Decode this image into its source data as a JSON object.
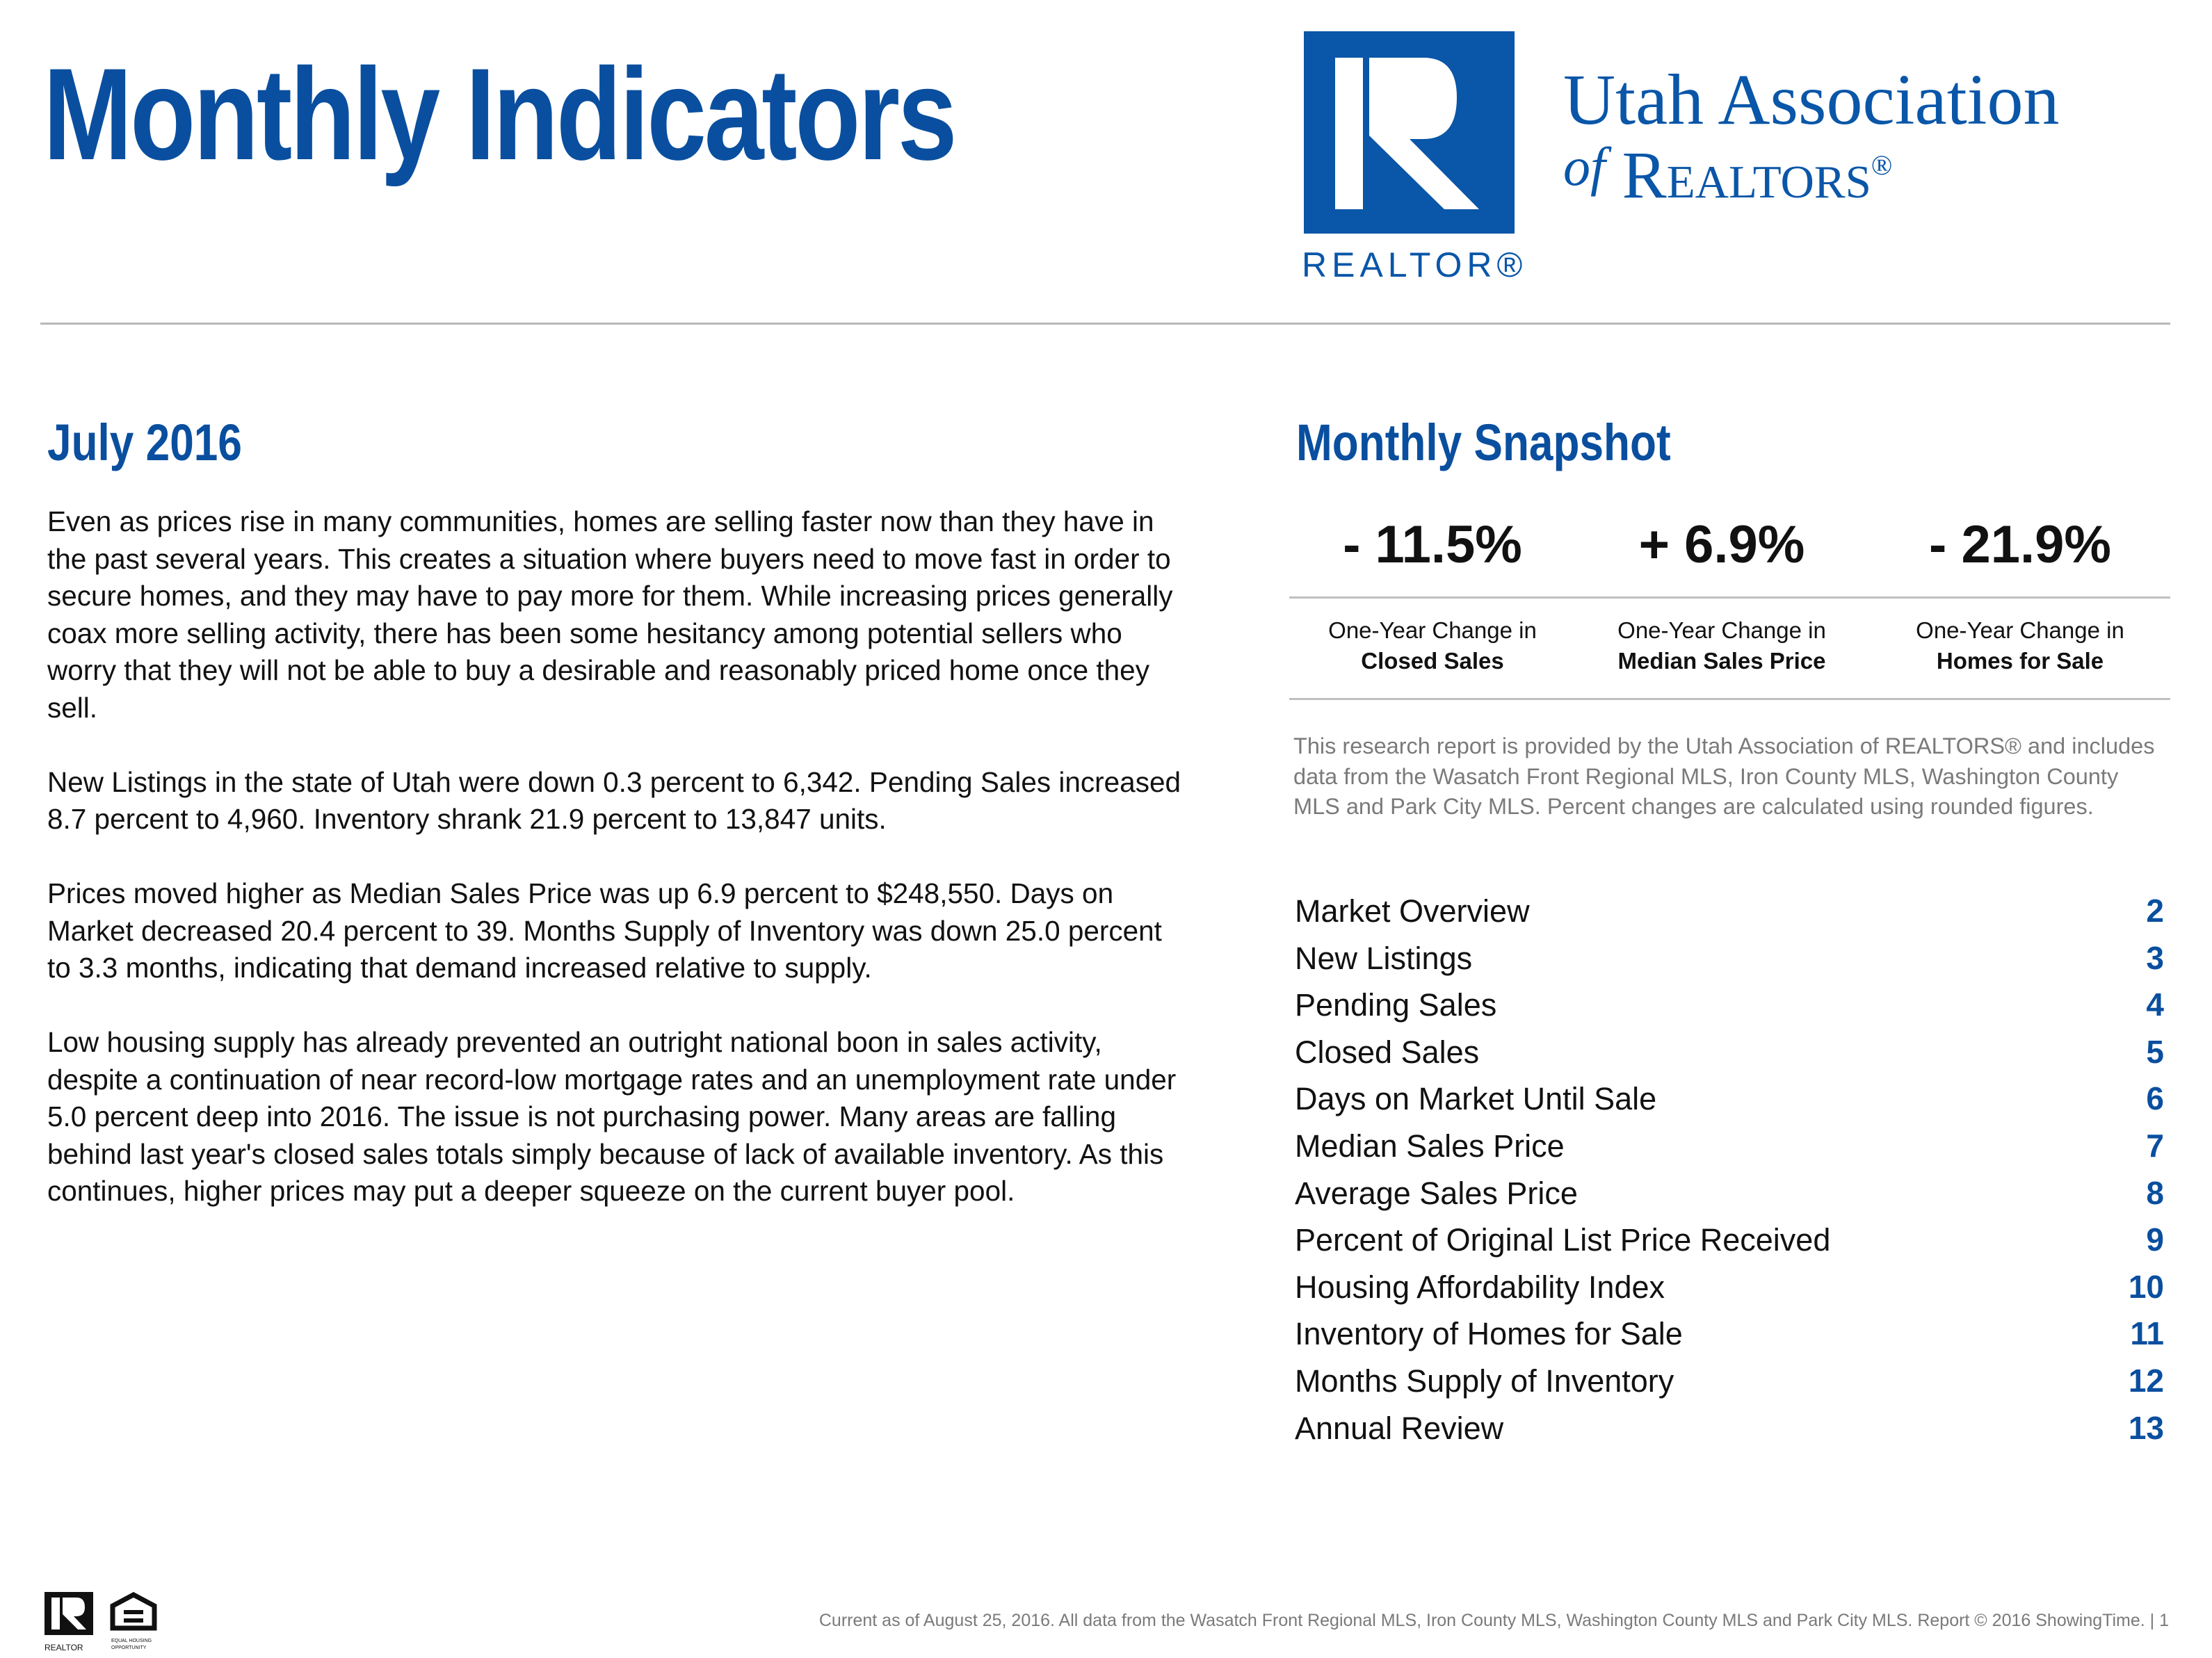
{
  "header": {
    "title": "Monthly Indicators",
    "logo": {
      "wordmark": "REALTOR®",
      "org_line1": "Utah Association",
      "org_of": "of",
      "org_line2": "Realtors",
      "org_reg": "®"
    }
  },
  "left": {
    "heading": "July 2016",
    "paragraphs": [
      "Even as prices rise in many communities, homes are selling faster now than they have in the past several years. This creates a situation where buyers need to move fast in order to secure homes, and they may have to pay more for them. While increasing prices generally coax more selling activity, there has been some hesitancy among potential sellers who worry that they will not be able to buy a desirable and reasonably priced home once they sell.",
      "New Listings in the state of Utah were down 0.3 percent to 6,342. Pending Sales increased 8.7 percent to 4,960. Inventory shrank 21.9 percent to 13,847 units.",
      "Prices moved higher as Median Sales Price was up 6.9 percent to $248,550. Days on Market decreased 20.4 percent to 39. Months Supply of Inventory was down 25.0 percent to 3.3 months, indicating that demand increased relative to supply.",
      "Low housing supply has already prevented an outright national boon in sales activity, despite a continuation of near record-low mortgage rates and an unemployment rate under 5.0 percent deep into 2016. The issue is not purchasing power. Many areas are falling behind last year's closed sales totals simply because of lack of available inventory. As this continues, higher prices may put a deeper squeeze on the current buyer pool."
    ]
  },
  "snapshot": {
    "heading": "Monthly Snapshot",
    "stats": [
      {
        "value": "- 11.5%",
        "label": "One-Year Change in",
        "metric": "Closed Sales"
      },
      {
        "value": "+ 6.9%",
        "label": "One-Year Change in",
        "metric": "Median Sales Price"
      },
      {
        "value": "- 21.9%",
        "label": "One-Year Change in",
        "metric": "Homes for Sale"
      }
    ],
    "note": "This research report is provided by the Utah Association of REALTORS® and includes data from the Wasatch Front Regional MLS, Iron County MLS, Washington County MLS and Park City MLS. Percent changes are calculated using rounded figures."
  },
  "toc": [
    {
      "label": "Market Overview",
      "page": "2"
    },
    {
      "label": "New Listings",
      "page": "3"
    },
    {
      "label": "Pending Sales",
      "page": "4"
    },
    {
      "label": "Closed Sales",
      "page": "5"
    },
    {
      "label": "Days on Market Until Sale",
      "page": "6"
    },
    {
      "label": "Median Sales Price",
      "page": "7"
    },
    {
      "label": "Average Sales Price",
      "page": "8"
    },
    {
      "label": "Percent of Original List Price Received",
      "page": "9"
    },
    {
      "label": "Housing Affordability Index",
      "page": "10"
    },
    {
      "label": "Inventory of Homes for Sale",
      "page": "11"
    },
    {
      "label": "Months Supply of Inventory",
      "page": "12"
    },
    {
      "label": "Annual Review",
      "page": "13"
    }
  ],
  "footer": {
    "text": "Current as of August 25, 2016. All data from the Wasatch Front Regional MLS, Iron County MLS, Washington County MLS and Park City MLS. Report © 2016 ShowingTime. | 1",
    "icons": [
      "realtor-logo-icon",
      "equal-housing-opportunity-icon"
    ],
    "icon_text": [
      "REALTOR",
      "EQUAL HOUSING OPPORTUNITY"
    ]
  },
  "colors": {
    "brand_blue": "#0a4f9f",
    "logo_blue": "#0a56a8",
    "muted_gray": "#7a7a7a"
  }
}
